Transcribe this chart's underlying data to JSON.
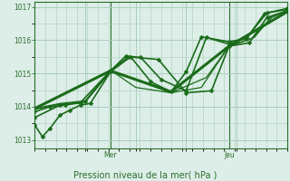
{
  "bg_color": "#ddeee8",
  "grid_color": "#aaccbb",
  "line_color": "#1a6b1a",
  "axis_color": "#2d6e2d",
  "text_color": "#2d6e2d",
  "ylim": [
    1012.75,
    1017.15
  ],
  "yticks": [
    1013,
    1014,
    1015,
    1016,
    1017
  ],
  "xlabel": "Pression niveau de la mer( hPa )",
  "day_labels": [
    "Mer",
    "Jeu"
  ],
  "day_positions": [
    0.3,
    0.77
  ],
  "xlim": [
    0.0,
    1.0
  ],
  "lines": [
    {
      "x": [
        0.0,
        0.03,
        0.06,
        0.1,
        0.14,
        0.18,
        0.22,
        0.3,
        0.38,
        0.46,
        0.54,
        0.6,
        0.66,
        0.77,
        0.84,
        0.91,
        1.0
      ],
      "y": [
        1013.45,
        1013.1,
        1013.35,
        1013.75,
        1013.9,
        1014.05,
        1014.1,
        1015.05,
        1015.5,
        1014.75,
        1014.45,
        1015.05,
        1016.1,
        1015.95,
        1016.05,
        1016.8,
        1016.95
      ],
      "lw": 1.2,
      "marker": true,
      "ms": 2.5
    },
    {
      "x": [
        0.0,
        0.06,
        0.12,
        0.18,
        0.3,
        0.36,
        0.42,
        0.5,
        0.6,
        0.68,
        0.77,
        0.84,
        0.92,
        1.0
      ],
      "y": [
        1013.85,
        1014.0,
        1014.05,
        1014.12,
        1015.08,
        1015.52,
        1015.48,
        1014.82,
        1014.48,
        1016.08,
        1015.88,
        1016.08,
        1016.82,
        1016.92
      ],
      "lw": 1.2,
      "marker": true,
      "ms": 2.5
    },
    {
      "x": [
        0.0,
        0.1,
        0.2,
        0.3,
        0.4,
        0.54,
        0.66,
        0.77,
        0.87,
        0.94,
        1.0
      ],
      "y": [
        1013.92,
        1014.08,
        1014.15,
        1015.05,
        1014.82,
        1014.42,
        1014.58,
        1015.82,
        1016.08,
        1016.72,
        1016.88
      ],
      "lw": 0.9,
      "marker": false,
      "ms": 0
    },
    {
      "x": [
        0.0,
        0.1,
        0.2,
        0.3,
        0.4,
        0.54,
        0.68,
        0.77,
        0.86,
        0.94,
        1.0
      ],
      "y": [
        1013.95,
        1014.1,
        1014.18,
        1015.1,
        1014.58,
        1014.42,
        1014.88,
        1015.82,
        1016.05,
        1016.68,
        1016.88
      ],
      "lw": 0.9,
      "marker": false,
      "ms": 0
    },
    {
      "x": [
        0.0,
        0.3,
        0.54,
        0.77,
        1.0
      ],
      "y": [
        1013.95,
        1015.08,
        1014.45,
        1015.82,
        1016.85
      ],
      "lw": 2.2,
      "marker": false,
      "ms": 0
    },
    {
      "x": [
        0.0,
        0.1,
        0.2,
        0.3,
        0.37,
        0.49,
        0.6,
        0.7,
        0.77,
        0.85,
        0.92,
        1.0
      ],
      "y": [
        1013.68,
        1014.05,
        1014.15,
        1015.08,
        1015.5,
        1015.42,
        1014.42,
        1014.48,
        1015.82,
        1015.92,
        1016.68,
        1016.88
      ],
      "lw": 1.2,
      "marker": true,
      "ms": 2.5
    }
  ]
}
